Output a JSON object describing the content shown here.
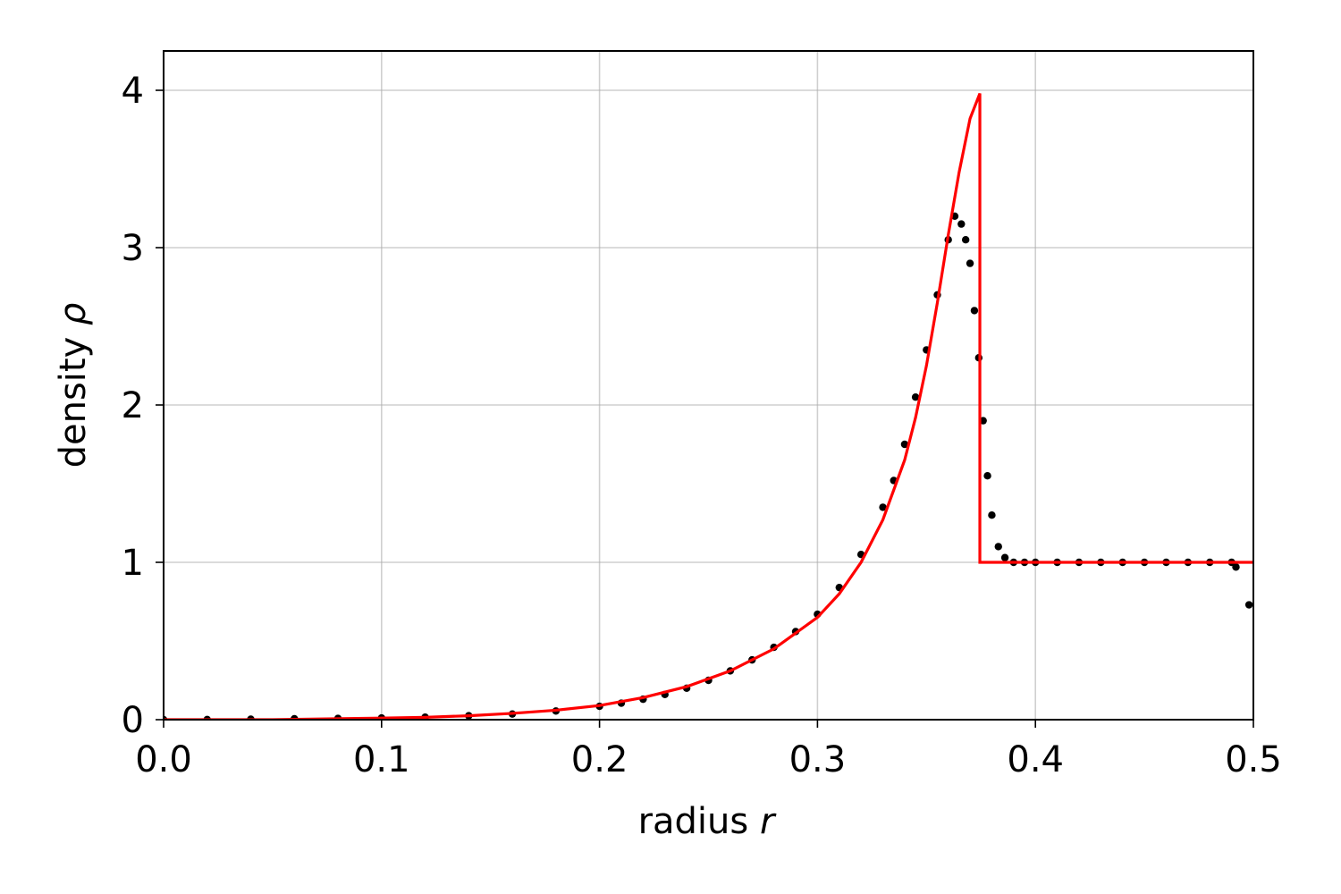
{
  "chart_data": {
    "type": "scatter",
    "xlabel": "radius",
    "xlabel_var": "r",
    "ylabel": "density",
    "ylabel_var": "ρ",
    "xlim": [
      0.0,
      0.5
    ],
    "ylim": [
      0.0,
      4.25
    ],
    "xticks": [
      0.0,
      0.1,
      0.2,
      0.3,
      0.4,
      0.5
    ],
    "xtick_labels": [
      "0.0",
      "0.1",
      "0.2",
      "0.3",
      "0.4",
      "0.5"
    ],
    "yticks": [
      0,
      1,
      2,
      3,
      4
    ],
    "ytick_labels": [
      "0",
      "1",
      "2",
      "3",
      "4"
    ],
    "grid": true,
    "series": [
      {
        "kind": "scatter",
        "color": "#000000",
        "x": [
          0.0,
          0.02,
          0.04,
          0.06,
          0.08,
          0.1,
          0.12,
          0.14,
          0.16,
          0.18,
          0.2,
          0.21,
          0.22,
          0.23,
          0.24,
          0.25,
          0.26,
          0.27,
          0.28,
          0.29,
          0.3,
          0.31,
          0.32,
          0.33,
          0.335,
          0.34,
          0.345,
          0.35,
          0.355,
          0.36,
          0.363,
          0.366,
          0.368,
          0.37,
          0.372,
          0.374,
          0.376,
          0.378,
          0.38,
          0.383,
          0.386,
          0.39,
          0.395,
          0.4,
          0.41,
          0.42,
          0.43,
          0.44,
          0.45,
          0.46,
          0.47,
          0.48,
          0.49,
          0.492,
          0.498
        ],
        "y": [
          0.0,
          0.001,
          0.003,
          0.006,
          0.008,
          0.011,
          0.016,
          0.025,
          0.036,
          0.055,
          0.085,
          0.105,
          0.13,
          0.16,
          0.2,
          0.25,
          0.31,
          0.38,
          0.46,
          0.56,
          0.67,
          0.84,
          1.05,
          1.35,
          1.52,
          1.75,
          2.05,
          2.35,
          2.7,
          3.05,
          3.2,
          3.15,
          3.05,
          2.9,
          2.6,
          2.3,
          1.9,
          1.55,
          1.3,
          1.1,
          1.03,
          1.0,
          1.0,
          1.0,
          1.0,
          1.0,
          1.0,
          1.0,
          1.0,
          1.0,
          1.0,
          1.0,
          1.0,
          0.97,
          0.73
        ]
      },
      {
        "kind": "line",
        "color": "#ff0000",
        "x": [
          0.0,
          0.05,
          0.1,
          0.12,
          0.14,
          0.16,
          0.18,
          0.2,
          0.22,
          0.24,
          0.26,
          0.28,
          0.3,
          0.31,
          0.32,
          0.33,
          0.34,
          0.345,
          0.35,
          0.355,
          0.36,
          0.365,
          0.37,
          0.3745,
          0.3745,
          0.5
        ],
        "y": [
          0.0,
          0.0,
          0.01,
          0.015,
          0.025,
          0.04,
          0.06,
          0.09,
          0.14,
          0.21,
          0.31,
          0.45,
          0.65,
          0.8,
          1.0,
          1.27,
          1.65,
          1.92,
          2.25,
          2.65,
          3.08,
          3.48,
          3.82,
          3.98,
          1.0,
          1.0
        ]
      }
    ]
  }
}
